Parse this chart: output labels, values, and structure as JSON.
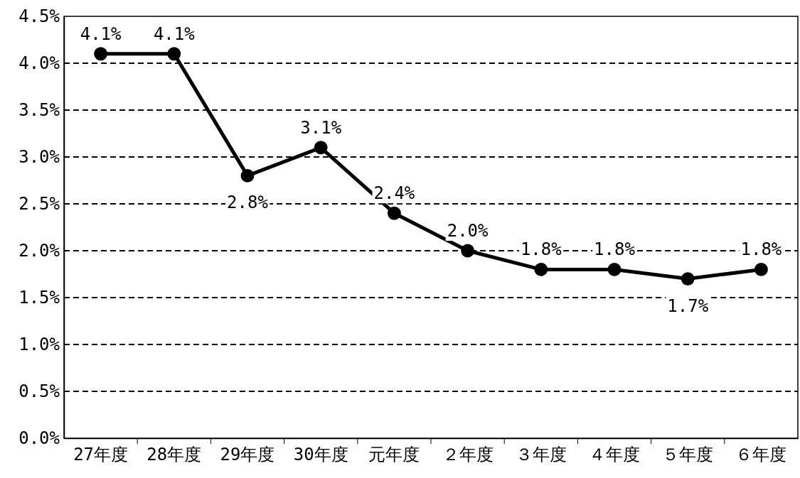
{
  "chart_data": {
    "type": "line",
    "categories": [
      "27年度",
      "28年度",
      "29年度",
      "30年度",
      "元年度",
      "２年度",
      "３年度",
      "４年度",
      "５年度",
      "６年度"
    ],
    "series": [
      {
        "color": "#000000",
        "values": [
          4.1,
          4.1,
          2.8,
          3.1,
          2.4,
          2.0,
          1.8,
          1.8,
          1.7,
          1.8
        ],
        "value_labels": [
          "4.1%",
          "4.1%",
          "2.8%",
          "3.1%",
          "2.4%",
          "2.0%",
          "1.8%",
          "1.8%",
          "1.7%",
          "1.8%"
        ]
      }
    ],
    "ylim": [
      0,
      4.5
    ],
    "yticks": [
      {
        "value": 0,
        "label": "0.0%"
      },
      {
        "value": 0.5,
        "label": "0.5%"
      },
      {
        "value": 1,
        "label": "1.0%"
      },
      {
        "value": 1.5,
        "label": "1.5%"
      },
      {
        "value": 2,
        "label": "2.0%"
      },
      {
        "value": 2.5,
        "label": "2.5%"
      },
      {
        "value": 3,
        "label": "3.0%"
      },
      {
        "value": 3.5,
        "label": "3.5%"
      },
      {
        "value": 4,
        "label": "4.0%"
      },
      {
        "value": 4.5,
        "label": "4.5%"
      }
    ],
    "grid": "y",
    "marker": "circle",
    "line_style": "solid"
  }
}
